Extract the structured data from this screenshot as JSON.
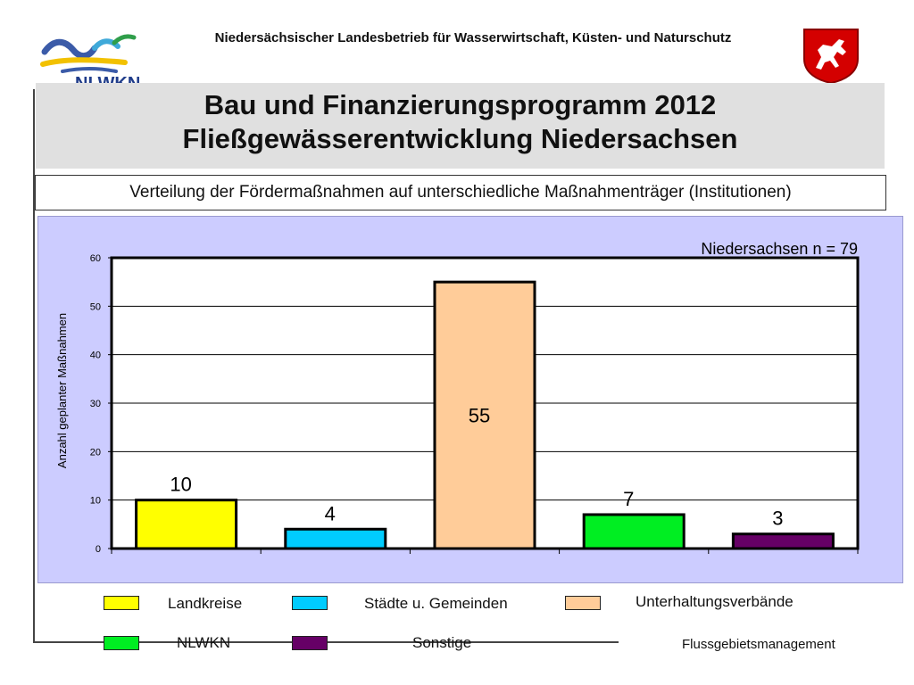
{
  "header": {
    "organization": "Niedersächsischer Landesbetrieb für Wasserwirtschaft, Küsten- und Naturschutz",
    "logo_text": "NLWKN",
    "crest_icon": "saxon-horse-crest-icon"
  },
  "title": {
    "line1": "Bau und Finanzierungsprogramm 2012",
    "line2": "Fließgewässerentwicklung Niedersachsen"
  },
  "subtitle": "Verteilung der Fördermaßnahmen auf unterschiedliche Maßnahmenträger (Institutionen)",
  "chart_data": {
    "type": "bar",
    "annotation": "Niedersachsen n = 79",
    "ylabel": "Anzahl geplanter Maßnahmen",
    "xlabel": "",
    "ylim": [
      0,
      60
    ],
    "yticks": [
      0,
      10,
      20,
      30,
      40,
      50,
      60
    ],
    "grid": true,
    "categories": [
      "Landkreise",
      "Städte u. Gemeinden",
      "Unterhaltungsverbände",
      "NLWKN",
      "Sonstige"
    ],
    "values": [
      10,
      4,
      55,
      7,
      3
    ],
    "colors": [
      "#ffff00",
      "#00ccff",
      "#ffcc99",
      "#00ee22",
      "#660066"
    ],
    "legend_position": "bottom"
  },
  "footer": "Flussgebietsmanagement"
}
